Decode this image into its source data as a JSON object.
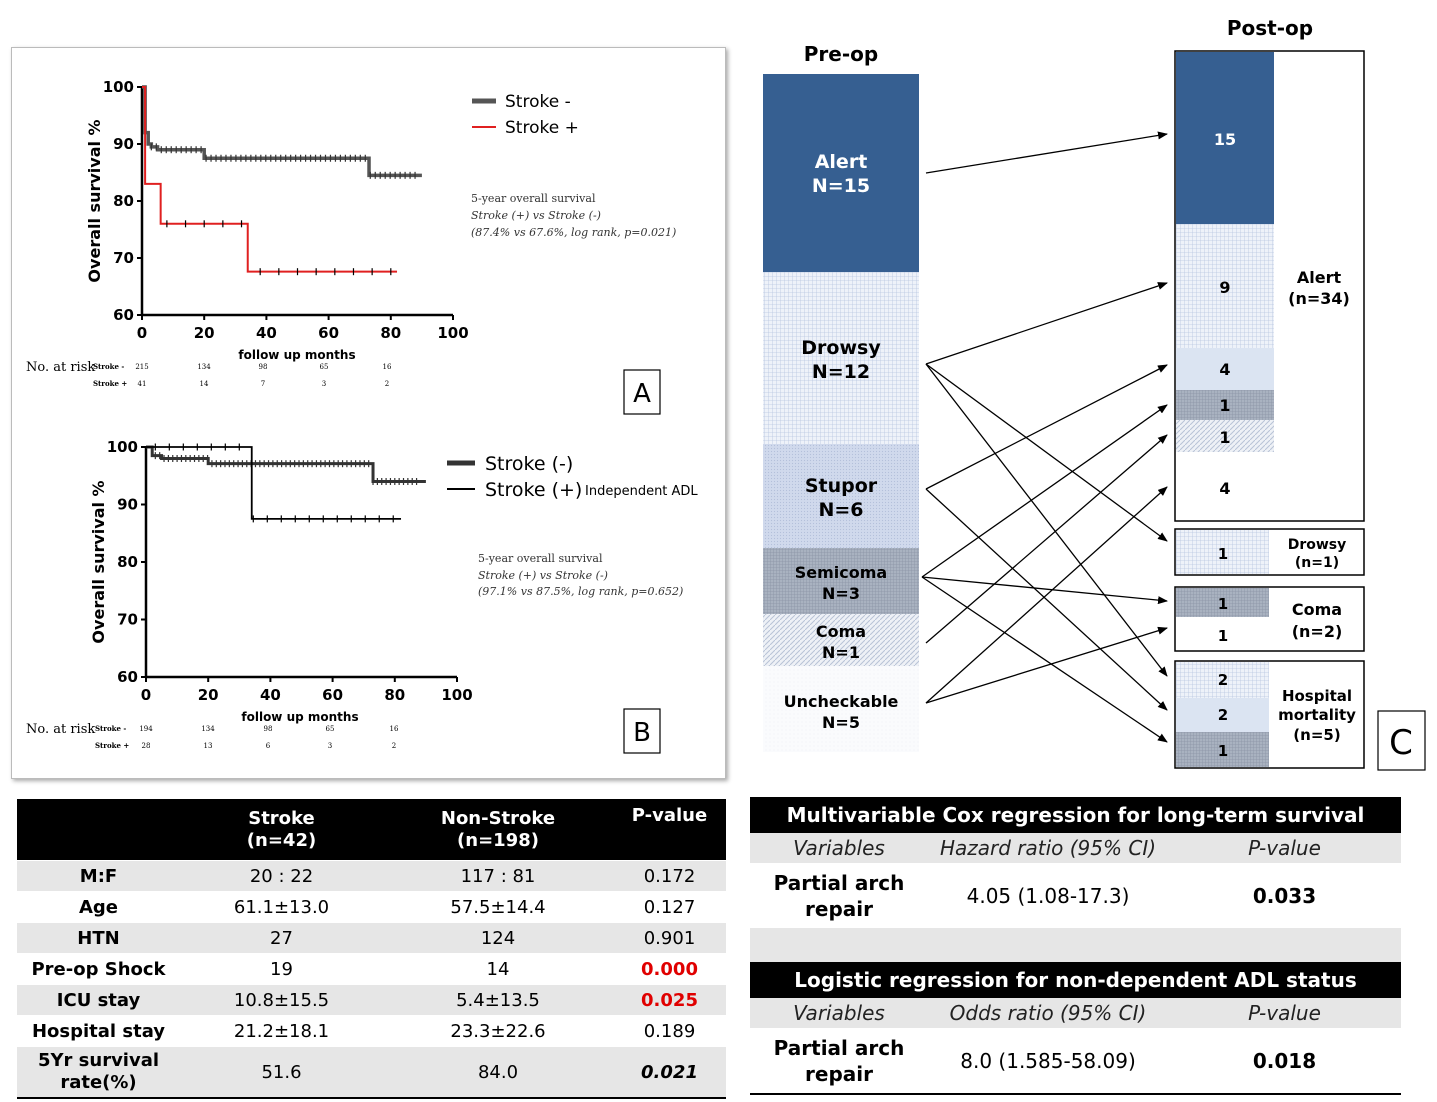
{
  "km_a": {
    "panel_label": "A",
    "ylabel": "Overall survival %",
    "xlabel": "follow up months",
    "xticks": [
      "0",
      "20",
      "40",
      "60",
      "80",
      "100"
    ],
    "yticks": [
      "60",
      "70",
      "80",
      "90",
      "100"
    ],
    "legend": [
      "Stroke -",
      "Stroke +"
    ],
    "colors": {
      "stroke_neg": "#555555",
      "stroke_pos": "#e02020"
    },
    "note_title": "5-year overall survival",
    "note_line1": "Stroke (+) vs Stroke (-)",
    "note_line2": "(87.4% vs 67.6%, log rank, p=0.021)",
    "risk_label": "No. at risk",
    "risk_rows": [
      {
        "name": "Stroke -",
        "values": [
          "215",
          "134",
          "98",
          "65",
          "16"
        ]
      },
      {
        "name": "Stroke +",
        "values": [
          "41",
          "14",
          "7",
          "3",
          "2"
        ]
      }
    ]
  },
  "km_b": {
    "panel_label": "B",
    "ylabel": "Overall survival %",
    "xlabel": "follow up months",
    "xticks": [
      "0",
      "20",
      "40",
      "60",
      "80",
      "100"
    ],
    "yticks": [
      "60",
      "70",
      "80",
      "90",
      "100"
    ],
    "legend": [
      "Stroke (-)",
      "Stroke (+)"
    ],
    "legend_extra": "Independent ADL",
    "note_title": "5-year overall survival",
    "note_line1": "Stroke (+) vs Stroke (-)",
    "note_line2": "(97.1% vs 87.5%, log rank, p=0.652)",
    "risk_label": "No. at risk",
    "risk_rows": [
      {
        "name": "Stroke -",
        "values": [
          "194",
          "134",
          "98",
          "65",
          "16"
        ]
      },
      {
        "name": "Stroke +",
        "values": [
          "28",
          "13",
          "6",
          "3",
          "2"
        ]
      }
    ]
  },
  "chart_data": [
    {
      "type": "line",
      "xlabel": "follow up months",
      "ylabel": "Overall survival %",
      "xlim": [
        0,
        100
      ],
      "ylim": [
        60,
        100
      ],
      "series": [
        {
          "name": "Stroke -",
          "x": [
            0,
            1,
            2,
            3,
            5,
            20,
            73,
            90
          ],
          "y": [
            100,
            92,
            90,
            89.5,
            89,
            87.5,
            84.5,
            84.5
          ]
        },
        {
          "name": "Stroke +",
          "x": [
            0,
            1,
            5,
            6,
            34,
            82
          ],
          "y": [
            100,
            83,
            83,
            76,
            67.6,
            67.6
          ]
        }
      ]
    },
    {
      "type": "line",
      "xlabel": "follow up months",
      "ylabel": "Overall survival %",
      "xlim": [
        0,
        100
      ],
      "ylim": [
        60,
        100
      ],
      "series": [
        {
          "name": "Stroke (-)",
          "x": [
            0,
            2,
            5,
            20,
            73,
            90
          ],
          "y": [
            100,
            98.5,
            98,
            97.1,
            94,
            94
          ]
        },
        {
          "name": "Stroke (+)",
          "x": [
            0,
            34,
            82
          ],
          "y": [
            100,
            87.5,
            87.5
          ]
        }
      ]
    }
  ],
  "flow": {
    "panel_label": "C",
    "pre_title": "Pre-op",
    "post_title": "Post-op",
    "pre": [
      {
        "name": "Alert",
        "n": "N=15"
      },
      {
        "name": "Drowsy",
        "n": "N=12"
      },
      {
        "name": "Stupor",
        "n": "N=6"
      },
      {
        "name": "Semicoma",
        "n": "N=3"
      },
      {
        "name": "Coma",
        "n": "N=1"
      },
      {
        "name": "Uncheckable",
        "n": "N=5"
      }
    ],
    "post_alert": {
      "label": "Alert",
      "n": "(n=34)",
      "counts": [
        "15",
        "9",
        "4",
        "1",
        "1",
        "4"
      ]
    },
    "post_drowsy": {
      "label": "Drowsy",
      "n": "(n=1)",
      "counts": [
        "1"
      ]
    },
    "post_coma": {
      "label": "Coma",
      "n": "(n=2)",
      "counts": [
        "1",
        "1"
      ]
    },
    "post_mort": {
      "label1": "Hospital",
      "label2": "mortality",
      "n": "(n=5)",
      "counts": [
        "2",
        "2",
        "1"
      ]
    },
    "colors": {
      "alert": "#365f91",
      "drowsy": "#dbe3f1",
      "stupor": "#c9d3e8",
      "semicoma": "#9aa4b4",
      "coma": "#e2e7f0"
    }
  },
  "table": {
    "headers": [
      "",
      "Stroke\n(n=42)",
      "Non-Stroke\n(n=198)",
      "P-value"
    ],
    "h1a": "Stroke",
    "h1b": "(n=42)",
    "h2a": "Non-Stroke",
    "h2b": "(n=198)",
    "h3": "P-value",
    "rows": [
      {
        "label": "M:F",
        "stroke": "20 : 22",
        "non": "117 : 81",
        "p": "0.172"
      },
      {
        "label": "Age",
        "stroke": "61.1±13.0",
        "non": "57.5±14.4",
        "p": "0.127"
      },
      {
        "label": "HTN",
        "stroke": "27",
        "non": "124",
        "p": "0.901"
      },
      {
        "label": "Pre-op Shock",
        "stroke": "19",
        "non": "14",
        "p": "0.000"
      },
      {
        "label": "ICU stay",
        "stroke": "10.8±15.5",
        "non": "5.4±13.5",
        "p": "0.025"
      },
      {
        "label": "Hospital stay",
        "stroke": "21.2±18.1",
        "non": "23.3±22.6",
        "p": "0.189"
      },
      {
        "label1": "5Yr survival",
        "label2": "rate(%)",
        "stroke": "51.6",
        "non": "84.0",
        "p": "0.021"
      }
    ]
  },
  "cox": {
    "title": "Multivariable Cox regression for long-term survival",
    "col1": "Variables",
    "col2": "Hazard ratio (95% CI)",
    "col3": "P-value",
    "var1": "Partial arch",
    "var2": "repair",
    "value": "4.05 (1.08-17.3)",
    "p": "0.033"
  },
  "logit": {
    "title": "Logistic regression for non-dependent ADL status",
    "col1": "Variables",
    "col2": "Odds ratio (95% CI)",
    "col3": "P-value",
    "var1": "Partial arch",
    "var2": "repair",
    "value": "8.0 (1.585-58.09)",
    "p": "0.018"
  }
}
